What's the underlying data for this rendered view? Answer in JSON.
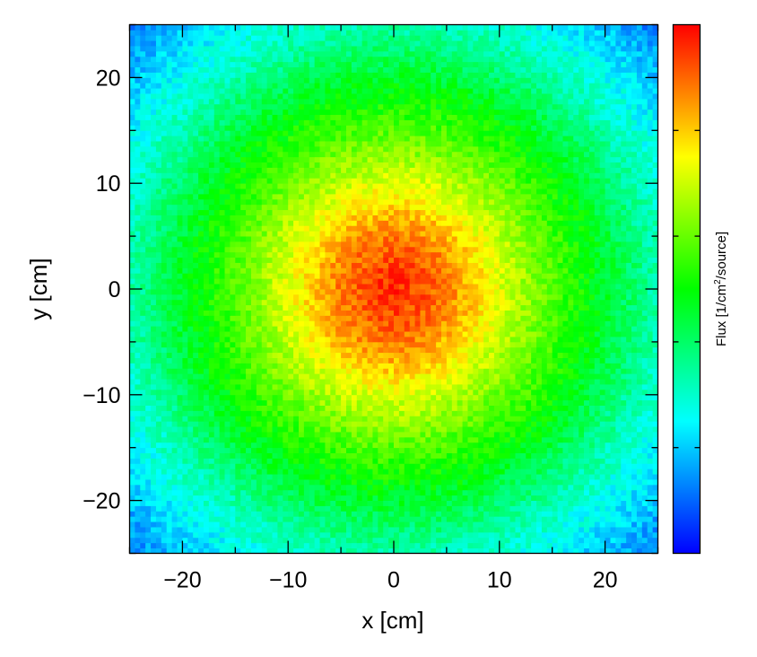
{
  "chart_data": {
    "type": "heatmap",
    "title": "",
    "xlabel": "x [cm]",
    "ylabel": "y [cm]",
    "xlim": [
      -25,
      25
    ],
    "ylim": [
      -25,
      25
    ],
    "bins": 100,
    "x_ticks": [
      "−20",
      "−10",
      "0",
      "10",
      "20"
    ],
    "x_tick_values": [
      -20,
      -10,
      0,
      10,
      20
    ],
    "y_ticks": [
      "−20",
      "−10",
      "0",
      "10",
      "20"
    ],
    "y_tick_values": [
      -20,
      -10,
      0,
      10,
      20
    ],
    "colorbar": {
      "label_prefix": "Flux [1/cm",
      "label_sup": "2",
      "label_suffix": "/source]",
      "colors": [
        "#0000ff",
        "#00ffff",
        "#00ff00",
        "#ffff00",
        "#ff0000"
      ],
      "tick_labels": []
    },
    "distribution": {
      "shape": "radial",
      "center": [
        0,
        0
      ],
      "description_levels": [
        {
          "radius_cm": 0,
          "level": 0.97
        },
        {
          "radius_cm": 5,
          "level": 0.88
        },
        {
          "radius_cm": 10,
          "level": 0.72
        },
        {
          "radius_cm": 15,
          "level": 0.58
        },
        {
          "radius_cm": 20,
          "level": 0.46
        },
        {
          "radius_cm": 25,
          "level": 0.33
        },
        {
          "radius_cm": 35.4,
          "level": 0.12
        }
      ],
      "noise": 0.05
    },
    "grid": false,
    "legend": "colorbar-right"
  }
}
